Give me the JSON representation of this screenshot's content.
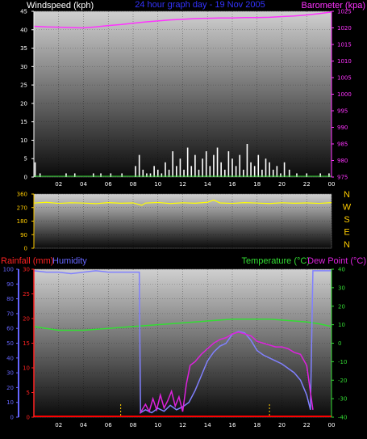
{
  "colors": {
    "wind": "#ffffff",
    "barometer": "#ff33ff",
    "direction": "#ffff00",
    "rain": "#ff0000",
    "humidity": "#8080ff",
    "temperature": "#33dd33",
    "dewpoint": "#dd22dd",
    "wind_axis": "#ffffff",
    "baro_axis": "#ff33ff",
    "dir_axis": "#ffcc00",
    "rain_axis": "#ff2222",
    "hum_axis": "#6666ff",
    "temp_axis": "#33dd33",
    "rain_marker": "#ffcc00"
  },
  "chart_data": [
    {
      "type": "line",
      "title": "24 hour graph day - 19 Nov 2005",
      "ylabel_left": "Windspeed (kph)",
      "ylabel_right": "Barometer (kpa)",
      "x_ticks": [
        "02",
        "04",
        "06",
        "08",
        "10",
        "12",
        "14",
        "16",
        "18",
        "20",
        "22",
        "00"
      ],
      "x_range": [
        0,
        24
      ],
      "y_left_ticks": [
        "0",
        "5",
        "10",
        "15",
        "20",
        "25",
        "30",
        "35",
        "40",
        "45"
      ],
      "y_left_range": [
        0,
        45
      ],
      "y_right_ticks": [
        "975",
        "980",
        "985",
        "990",
        "995",
        "1000",
        "1005",
        "1010",
        "1015",
        "1020",
        "1025"
      ],
      "y_right_range": [
        975,
        1025
      ],
      "series": [
        {
          "name": "Windspeed (kph)",
          "kind": "bar",
          "x": [
            0.1,
            0.5,
            2.6,
            3.3,
            4.8,
            5.4,
            6.2,
            7.1,
            8.2,
            8.5,
            8.8,
            9.1,
            9.4,
            9.7,
            10.0,
            10.3,
            10.6,
            10.9,
            11.2,
            11.5,
            11.8,
            12.1,
            12.4,
            12.7,
            13.0,
            13.3,
            13.6,
            13.9,
            14.2,
            14.5,
            14.8,
            15.1,
            15.4,
            15.7,
            16.0,
            16.3,
            16.6,
            16.9,
            17.2,
            17.5,
            17.8,
            18.1,
            18.4,
            18.7,
            19.0,
            19.3,
            19.6,
            19.9,
            20.2,
            20.6,
            21.2,
            22.0,
            23.1,
            23.8
          ],
          "values": [
            4,
            1,
            1,
            1,
            1,
            1,
            1,
            1,
            3,
            6,
            2,
            1,
            1,
            3,
            2,
            1,
            4,
            2,
            7,
            3,
            5,
            2,
            8,
            3,
            6,
            2,
            5,
            7,
            3,
            6,
            8,
            4,
            2,
            7,
            5,
            3,
            6,
            2,
            9,
            4,
            3,
            6,
            2,
            5,
            4,
            2,
            3,
            1,
            4,
            2,
            1,
            1,
            1,
            1
          ]
        },
        {
          "name": "Barometer (kpa)",
          "kind": "line",
          "x": [
            0,
            1,
            2,
            3,
            4,
            5,
            6,
            7,
            8,
            9,
            10,
            11,
            12,
            13,
            14,
            15,
            16,
            17,
            18,
            19,
            20,
            21,
            22,
            23,
            24
          ],
          "values": [
            1020.5,
            1020.3,
            1020.2,
            1020.1,
            1020.0,
            1020.3,
            1020.7,
            1021.0,
            1021.4,
            1021.8,
            1022.1,
            1022.4,
            1022.6,
            1022.8,
            1022.9,
            1023.0,
            1023.0,
            1023.1,
            1023.1,
            1023.2,
            1023.4,
            1023.6,
            1023.9,
            1024.3,
            1024.8
          ]
        }
      ]
    },
    {
      "type": "line",
      "y_left_ticks": [
        "0",
        "90",
        "180",
        "270",
        "360"
      ],
      "y_left_range": [
        0,
        360
      ],
      "y_right_labels": [
        "N",
        "W",
        "S",
        "E",
        "N"
      ],
      "series": [
        {
          "name": "Wind direction",
          "kind": "line",
          "x": [
            0,
            1,
            2,
            3,
            4,
            5,
            6,
            7,
            8,
            8.7,
            9,
            10,
            11,
            12,
            13,
            14,
            14.5,
            15,
            16,
            17,
            18,
            19,
            20,
            21,
            22,
            23,
            24
          ],
          "values": [
            300,
            305,
            298,
            302,
            300,
            296,
            303,
            299,
            301,
            285,
            300,
            304,
            297,
            302,
            299,
            305,
            320,
            301,
            298,
            303,
            300,
            297,
            302,
            299,
            301,
            298,
            303
          ]
        }
      ]
    },
    {
      "type": "line",
      "ylabel_left_1": "Rainfall (mm)",
      "ylabel_left_2": "Humidity",
      "ylabel_right_1": "Temperature (°C)",
      "ylabel_right_2": "Dew Point (°C)",
      "x_ticks": [
        "02",
        "04",
        "06",
        "08",
        "10",
        "12",
        "14",
        "16",
        "18",
        "20",
        "22",
        "00"
      ],
      "x_range": [
        0,
        24
      ],
      "rain_ticks": [
        "0",
        "5",
        "10",
        "15",
        "20",
        "25",
        "30"
      ],
      "rain_range": [
        0,
        30
      ],
      "hum_ticks": [
        "0",
        "10",
        "20",
        "30",
        "40",
        "50",
        "60",
        "70",
        "80",
        "90",
        "100"
      ],
      "hum_range": [
        0,
        100
      ],
      "temp_ticks": [
        "-40",
        "-30",
        "-20",
        "-10",
        "0",
        "10",
        "20",
        "30",
        "40"
      ],
      "temp_range": [
        -40,
        40
      ],
      "rain_markers": [
        7.0,
        19.0
      ],
      "series": [
        {
          "name": "Rainfall (mm)",
          "kind": "line",
          "x": [
            0,
            24
          ],
          "values": [
            0,
            0
          ]
        },
        {
          "name": "Humidity",
          "kind": "line",
          "x": [
            0,
            1,
            2,
            3,
            4,
            5,
            6,
            7,
            8,
            8.5,
            8.6,
            9,
            9.5,
            10,
            10.5,
            11,
            11.5,
            12,
            12.5,
            13,
            13.5,
            14,
            14.5,
            15,
            15.5,
            16,
            16.5,
            17,
            17.5,
            18,
            18.5,
            19,
            19.5,
            20,
            20.5,
            21,
            21.5,
            22,
            22.3,
            22.5,
            22.6,
            23,
            24
          ],
          "values": [
            99,
            98,
            98,
            97,
            98,
            99,
            98,
            98,
            98,
            98,
            3,
            5,
            3,
            6,
            4,
            8,
            5,
            7,
            10,
            18,
            28,
            38,
            44,
            48,
            50,
            56,
            58,
            57,
            52,
            45,
            42,
            40,
            38,
            36,
            33,
            30,
            25,
            15,
            5,
            99,
            99,
            99,
            99
          ]
        },
        {
          "name": "Temperature (°C)",
          "kind": "line",
          "x": [
            0,
            1,
            2,
            3,
            4,
            5,
            6,
            7,
            8,
            9,
            10,
            11,
            12,
            13,
            14,
            15,
            16,
            17,
            18,
            19,
            20,
            21,
            22,
            23,
            24
          ],
          "values": [
            9,
            8,
            7,
            7,
            7,
            7.5,
            8,
            8.5,
            9,
            9.5,
            10,
            10.5,
            11,
            11.5,
            12,
            12.5,
            13,
            13,
            13,
            13,
            12.5,
            12,
            11.5,
            10.5,
            9
          ]
        },
        {
          "name": "Dew Point (°C)",
          "kind": "line",
          "x": [
            8.55,
            9,
            9.3,
            9.6,
            9.9,
            10.2,
            10.5,
            10.8,
            11.1,
            11.4,
            11.7,
            12.0,
            12.3,
            12.6,
            13,
            13.5,
            14,
            14.5,
            15,
            15.5,
            16,
            16.5,
            17,
            17.5,
            18,
            18.5,
            19,
            19.5,
            20,
            20.5,
            21,
            21.5,
            22,
            22.5
          ],
          "values": [
            -38,
            -33,
            -37,
            -30,
            -36,
            -28,
            -35,
            -31,
            -26,
            -34,
            -29,
            -37,
            -22,
            -12,
            -10,
            -6,
            -3,
            0,
            2,
            3,
            5,
            6,
            5,
            4,
            1,
            0,
            -1,
            -2,
            -2,
            -3,
            -5,
            -6,
            -12,
            -36
          ]
        }
      ]
    }
  ]
}
